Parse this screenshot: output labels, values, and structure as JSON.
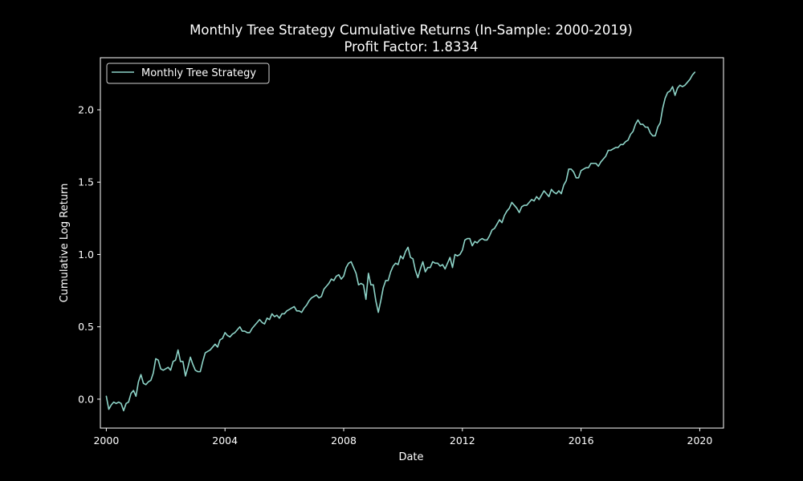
{
  "colors": {
    "background": "#000000",
    "axes": "#ffffff",
    "line": "#8dd3c7",
    "legend_border": "#d0d0d0"
  },
  "chart_data": {
    "type": "line",
    "title": "Monthly Tree Strategy Cumulative Returns (In-Sample: 2000-2019)",
    "subtitle": "Profit Factor: 1.8334",
    "xlabel": "Date",
    "ylabel": "Cumulative Log Return",
    "xlim": [
      1999.8,
      2020.8
    ],
    "ylim": [
      -0.2,
      2.36
    ],
    "xticks": [
      2000,
      2004,
      2008,
      2012,
      2016,
      2020
    ],
    "xtick_labels": [
      "2000",
      "2004",
      "2008",
      "2012",
      "2016",
      "2020"
    ],
    "yticks": [
      0.0,
      0.5,
      1.0,
      1.5,
      2.0
    ],
    "ytick_labels": [
      "0.0",
      "0.5",
      "1.0",
      "1.5",
      "2.0"
    ],
    "grid": false,
    "legend_position": "top-left",
    "series": [
      {
        "name": "Monthly Tree Strategy",
        "color": "#8dd3c7",
        "x": [
          2000.0,
          2000.083,
          2000.167,
          2000.25,
          2000.333,
          2000.417,
          2000.5,
          2000.583,
          2000.667,
          2000.75,
          2000.833,
          2000.917,
          2001.0,
          2001.083,
          2001.167,
          2001.25,
          2001.333,
          2001.417,
          2001.5,
          2001.583,
          2001.667,
          2001.75,
          2001.833,
          2001.917,
          2002.0,
          2002.083,
          2002.167,
          2002.25,
          2002.333,
          2002.417,
          2002.5,
          2002.583,
          2002.667,
          2002.75,
          2002.833,
          2002.917,
          2003.0,
          2003.083,
          2003.167,
          2003.25,
          2003.333,
          2003.417,
          2003.5,
          2003.583,
          2003.667,
          2003.75,
          2003.833,
          2003.917,
          2004.0,
          2004.083,
          2004.167,
          2004.25,
          2004.333,
          2004.417,
          2004.5,
          2004.583,
          2004.667,
          2004.75,
          2004.833,
          2004.917,
          2005.0,
          2005.083,
          2005.167,
          2005.25,
          2005.333,
          2005.417,
          2005.5,
          2005.583,
          2005.667,
          2005.75,
          2005.833,
          2005.917,
          2006.0,
          2006.083,
          2006.167,
          2006.25,
          2006.333,
          2006.417,
          2006.5,
          2006.583,
          2006.667,
          2006.75,
          2006.833,
          2006.917,
          2007.0,
          2007.083,
          2007.167,
          2007.25,
          2007.333,
          2007.417,
          2007.5,
          2007.583,
          2007.667,
          2007.75,
          2007.833,
          2007.917,
          2008.0,
          2008.083,
          2008.167,
          2008.25,
          2008.333,
          2008.417,
          2008.5,
          2008.583,
          2008.667,
          2008.75,
          2008.833,
          2008.917,
          2009.0,
          2009.083,
          2009.167,
          2009.25,
          2009.333,
          2009.417,
          2009.5,
          2009.583,
          2009.667,
          2009.75,
          2009.833,
          2009.917,
          2010.0,
          2010.083,
          2010.167,
          2010.25,
          2010.333,
          2010.417,
          2010.5,
          2010.583,
          2010.667,
          2010.75,
          2010.833,
          2010.917,
          2011.0,
          2011.083,
          2011.167,
          2011.25,
          2011.333,
          2011.417,
          2011.5,
          2011.583,
          2011.667,
          2011.75,
          2011.833,
          2011.917,
          2012.0,
          2012.083,
          2012.167,
          2012.25,
          2012.333,
          2012.417,
          2012.5,
          2012.583,
          2012.667,
          2012.75,
          2012.833,
          2012.917,
          2013.0,
          2013.083,
          2013.167,
          2013.25,
          2013.333,
          2013.417,
          2013.5,
          2013.583,
          2013.667,
          2013.75,
          2013.833,
          2013.917,
          2014.0,
          2014.083,
          2014.167,
          2014.25,
          2014.333,
          2014.417,
          2014.5,
          2014.583,
          2014.667,
          2014.75,
          2014.833,
          2014.917,
          2015.0,
          2015.083,
          2015.167,
          2015.25,
          2015.333,
          2015.417,
          2015.5,
          2015.583,
          2015.667,
          2015.75,
          2015.833,
          2015.917,
          2016.0,
          2016.083,
          2016.167,
          2016.25,
          2016.333,
          2016.417,
          2016.5,
          2016.583,
          2016.667,
          2016.75,
          2016.833,
          2016.917,
          2017.0,
          2017.083,
          2017.167,
          2017.25,
          2017.333,
          2017.417,
          2017.5,
          2017.583,
          2017.667,
          2017.75,
          2017.833,
          2017.917,
          2018.0,
          2018.083,
          2018.167,
          2018.25,
          2018.333,
          2018.417,
          2018.5,
          2018.583,
          2018.667,
          2018.75,
          2018.833,
          2018.917,
          2019.0,
          2019.083,
          2019.167,
          2019.25,
          2019.333,
          2019.417,
          2019.5,
          2019.583,
          2019.667,
          2019.75,
          2019.833
        ],
        "y": [
          0.02,
          -0.07,
          -0.04,
          -0.02,
          -0.03,
          -0.02,
          -0.03,
          -0.08,
          -0.03,
          -0.02,
          0.04,
          0.06,
          0.02,
          0.12,
          0.17,
          0.11,
          0.1,
          0.12,
          0.13,
          0.18,
          0.28,
          0.27,
          0.21,
          0.2,
          0.21,
          0.22,
          0.2,
          0.26,
          0.27,
          0.34,
          0.26,
          0.26,
          0.16,
          0.22,
          0.29,
          0.24,
          0.2,
          0.19,
          0.19,
          0.26,
          0.32,
          0.33,
          0.34,
          0.36,
          0.38,
          0.36,
          0.41,
          0.42,
          0.46,
          0.44,
          0.43,
          0.45,
          0.46,
          0.48,
          0.5,
          0.47,
          0.47,
          0.46,
          0.46,
          0.49,
          0.51,
          0.53,
          0.55,
          0.53,
          0.52,
          0.56,
          0.55,
          0.59,
          0.57,
          0.58,
          0.56,
          0.59,
          0.59,
          0.61,
          0.62,
          0.63,
          0.64,
          0.61,
          0.61,
          0.6,
          0.63,
          0.65,
          0.68,
          0.7,
          0.71,
          0.72,
          0.7,
          0.71,
          0.76,
          0.78,
          0.8,
          0.83,
          0.82,
          0.85,
          0.86,
          0.83,
          0.85,
          0.91,
          0.94,
          0.95,
          0.91,
          0.87,
          0.79,
          0.8,
          0.79,
          0.69,
          0.87,
          0.79,
          0.79,
          0.68,
          0.6,
          0.68,
          0.77,
          0.82,
          0.82,
          0.88,
          0.92,
          0.94,
          0.93,
          0.99,
          0.97,
          1.02,
          1.05,
          0.98,
          0.97,
          0.89,
          0.84,
          0.9,
          0.95,
          0.88,
          0.91,
          0.91,
          0.95,
          0.94,
          0.94,
          0.92,
          0.93,
          0.9,
          0.94,
          0.98,
          0.91,
          1.0,
          0.99,
          1.0,
          1.03,
          1.1,
          1.11,
          1.11,
          1.06,
          1.09,
          1.08,
          1.1,
          1.11,
          1.1,
          1.1,
          1.13,
          1.17,
          1.18,
          1.21,
          1.24,
          1.22,
          1.27,
          1.3,
          1.32,
          1.36,
          1.34,
          1.32,
          1.29,
          1.33,
          1.34,
          1.34,
          1.36,
          1.38,
          1.37,
          1.4,
          1.38,
          1.41,
          1.44,
          1.42,
          1.4,
          1.45,
          1.43,
          1.42,
          1.44,
          1.42,
          1.48,
          1.51,
          1.59,
          1.59,
          1.57,
          1.53,
          1.53,
          1.58,
          1.59,
          1.6,
          1.6,
          1.63,
          1.63,
          1.63,
          1.61,
          1.64,
          1.66,
          1.68,
          1.72,
          1.72,
          1.73,
          1.74,
          1.74,
          1.76,
          1.76,
          1.78,
          1.79,
          1.83,
          1.85,
          1.9,
          1.93,
          1.9,
          1.9,
          1.88,
          1.88,
          1.84,
          1.82,
          1.82,
          1.88,
          1.91,
          2.01,
          2.08,
          2.12,
          2.13,
          2.16,
          2.1,
          2.15,
          2.17,
          2.16,
          2.17,
          2.19,
          2.21,
          2.24,
          2.26
        ]
      }
    ]
  }
}
